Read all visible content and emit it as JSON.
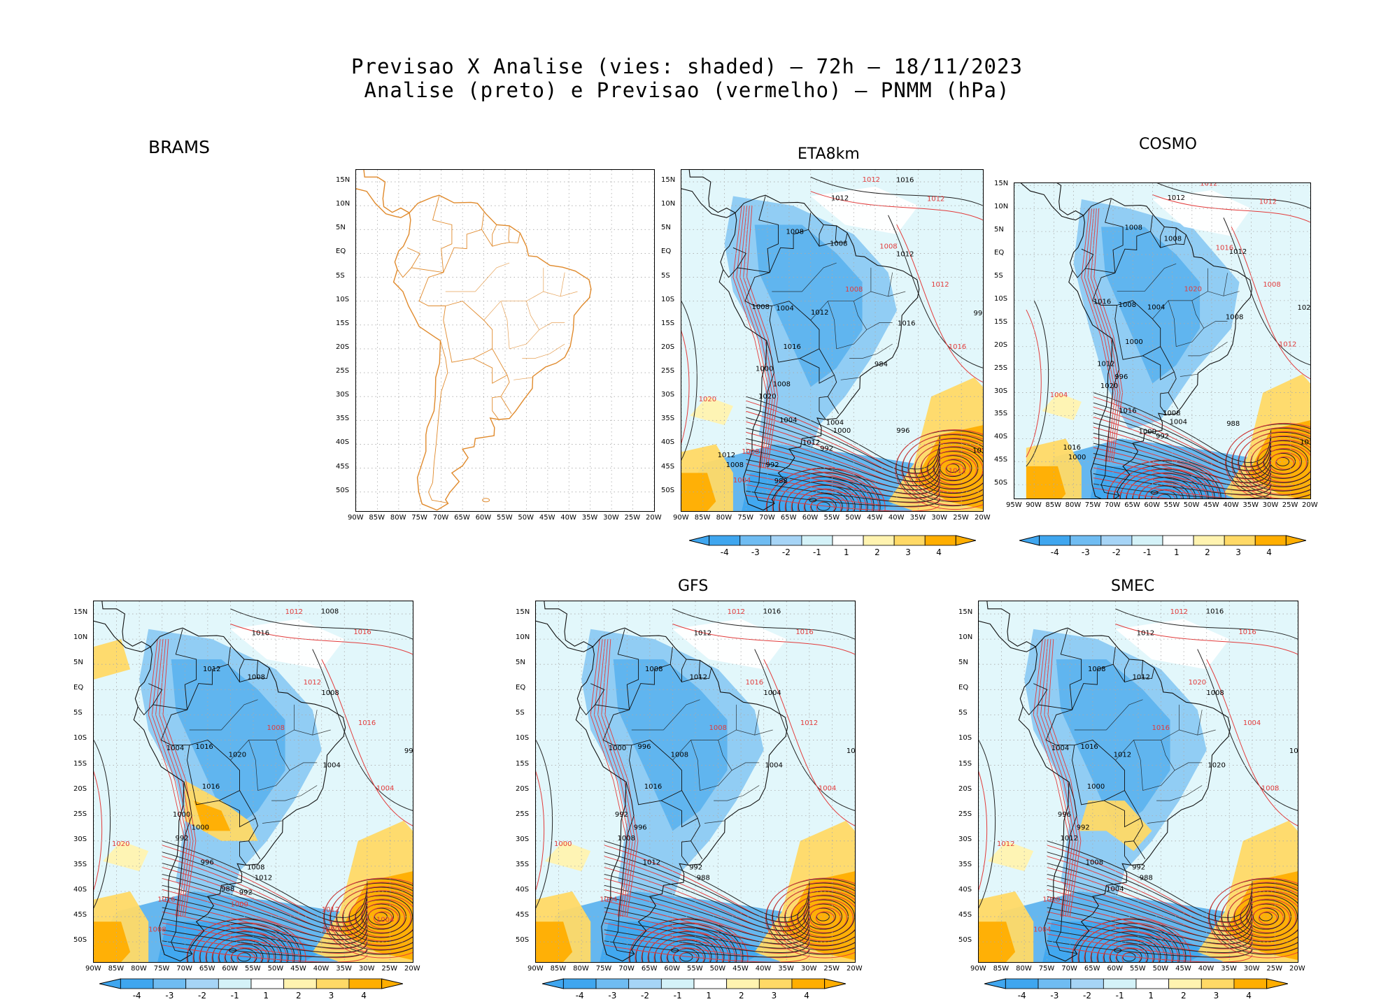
{
  "title": {
    "line1": "Previsao X Analise (vies: shaded) – 72h – 18/11/2023",
    "line2": "Analise (preto) e Previsao (vermelho) – PNMM (hPa)"
  },
  "models": {
    "brams_top": "BRAMS",
    "eta": "ETA8km",
    "cosmo": "COSMO",
    "gfs": "GFS",
    "smec": "SMEC"
  },
  "axes": {
    "lat_labels": [
      "15N",
      "10N",
      "5N",
      "EQ",
      "5S",
      "10S",
      "15S",
      "20S",
      "25S",
      "30S",
      "35S",
      "40S",
      "45S",
      "50S"
    ],
    "lon_labels_90": [
      "90W",
      "85W",
      "80W",
      "75W",
      "70W",
      "65W",
      "60W",
      "55W",
      "50W",
      "45W",
      "40W",
      "35W",
      "30W",
      "25W",
      "20W"
    ],
    "lon_labels_95": [
      "95W",
      "90W",
      "85W",
      "80W",
      "75W",
      "70W",
      "65W",
      "60W",
      "55W",
      "50W",
      "45W",
      "40W",
      "35W",
      "30W",
      "25W",
      "20W"
    ]
  },
  "colorbar": {
    "labels": [
      "-4",
      "-3",
      "-2",
      "-1",
      "1",
      "2",
      "3",
      "4"
    ],
    "colors": [
      "#3fa6ef",
      "#6fbcf2",
      "#a6d4f6",
      "#d4f2f8",
      "#ffffff",
      "#fff3b0",
      "#ffd966",
      "#ffae00"
    ],
    "under_color": "#3fa6ef",
    "over_color": "#ffae00"
  },
  "contours": {
    "eta": {
      "black": [
        "1016",
        "1012",
        "1008",
        "1008",
        "1012",
        "1008",
        "1004",
        "1012",
        "1016",
        "996",
        "1016",
        "1000",
        "1008",
        "1020",
        "1004",
        "1004",
        "1000",
        "1012",
        "992",
        "996",
        "1016",
        "1012",
        "1008",
        "992",
        "988",
        "984"
      ],
      "red": [
        "1012",
        "1012",
        "1008",
        "1008",
        "1016",
        "1012",
        "1020",
        "1008",
        "1004",
        "1012"
      ]
    },
    "cosmo": {
      "black": [
        "1012",
        "1012",
        "1008",
        "1008",
        "1012",
        "1016",
        "1008",
        "1004",
        "1008",
        "1020",
        "1000",
        "1012",
        "996",
        "1020",
        "1016",
        "1008",
        "1004",
        "1000",
        "992",
        "988",
        "1012",
        "1016",
        "1000"
      ],
      "red": [
        "1012",
        "1012",
        "1016",
        "1020",
        "1012",
        "1008",
        "1004"
      ]
    },
    "brams": {
      "black": [
        "1008",
        "1016",
        "1012",
        "1008",
        "1008",
        "1004",
        "1016",
        "1020",
        "1004",
        "996",
        "1016",
        "1000",
        "1000",
        "992",
        "996",
        "1008",
        "1012",
        "988",
        "992"
      ],
      "red": [
        "1012",
        "1016",
        "1012",
        "1008",
        "1004",
        "1016",
        "1020",
        "1016",
        "1008",
        "1004",
        "1012",
        "1000",
        "1000"
      ]
    },
    "gfs": {
      "black": [
        "1016",
        "1012",
        "1008",
        "1012",
        "1004",
        "1000",
        "996",
        "1008",
        "1004",
        "1000",
        "1016",
        "992",
        "996",
        "1008",
        "1012",
        "992",
        "988"
      ],
      "red": [
        "1012",
        "1016",
        "1016",
        "1008",
        "1004",
        "1012",
        "1000",
        "1004"
      ]
    },
    "smec": {
      "black": [
        "1016",
        "1012",
        "1008",
        "1012",
        "1008",
        "1004",
        "1016",
        "1012",
        "1020",
        "1004",
        "1000",
        "996",
        "992",
        "1012",
        "1008",
        "992",
        "988",
        "1004"
      ],
      "red": [
        "1012",
        "1016",
        "1020",
        "1016",
        "1008",
        "1004",
        "1012",
        "1000",
        "1004"
      ]
    }
  }
}
